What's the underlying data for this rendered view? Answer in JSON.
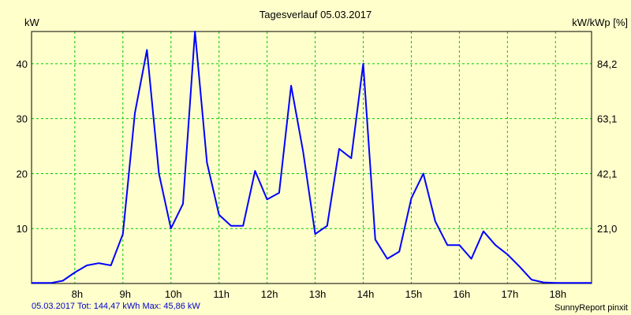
{
  "chart_data": {
    "type": "line",
    "title": "Tagesverlauf 05.03.2017",
    "ylabel_left": "kW",
    "ylabel_right": "kW/kWp [%]",
    "x_ticks": [
      "8h",
      "9h",
      "10h",
      "11h",
      "12h",
      "13h",
      "14h",
      "15h",
      "16h",
      "17h",
      "18h"
    ],
    "y_ticks_left": [
      "10",
      "20",
      "30",
      "40"
    ],
    "y_ticks_right": [
      "21,0",
      "42,1",
      "63,1",
      "84,2"
    ],
    "xlim": [
      7.1,
      18.75
    ],
    "ylim": [
      0,
      45.86
    ],
    "grid": true,
    "series": [
      {
        "x": [
          7.1,
          7.5,
          7.75,
          8.0,
          8.25,
          8.5,
          8.75,
          9.0,
          9.25,
          9.5,
          9.75,
          10.0,
          10.25,
          10.5,
          10.75,
          11.0,
          11.25,
          11.5,
          11.75,
          12.0,
          12.25,
          12.5,
          12.75,
          13.0,
          13.25,
          13.5,
          13.75,
          14.0,
          14.25,
          14.5,
          14.75,
          15.0,
          15.25,
          15.5,
          15.75,
          16.0,
          16.25,
          16.5,
          16.75,
          17.0,
          17.25,
          17.5,
          17.75,
          18.0,
          18.25,
          18.75
        ],
        "y": [
          0.1,
          0.1,
          0.5,
          2.0,
          3.3,
          3.7,
          3.3,
          9.0,
          31.0,
          42.5,
          20.0,
          10.0,
          14.5,
          45.86,
          22.0,
          12.5,
          10.5,
          10.5,
          20.5,
          15.3,
          16.5,
          36.0,
          24.0,
          9.0,
          10.5,
          24.5,
          22.8,
          40.0,
          8.0,
          4.5,
          5.8,
          15.5,
          20.0,
          11.3,
          7.0,
          7.0,
          4.5,
          9.5,
          7.0,
          5.3,
          3.1,
          0.7,
          0.2,
          0.1,
          0.1,
          0.1
        ]
      }
    ],
    "color": "#0000ff",
    "grid_color": "#00c800"
  },
  "footer": {
    "left": "05.03.2017 Tot: 144,47 kWh Max: 45,86 kW",
    "right": "SunnyReport pinxit"
  }
}
